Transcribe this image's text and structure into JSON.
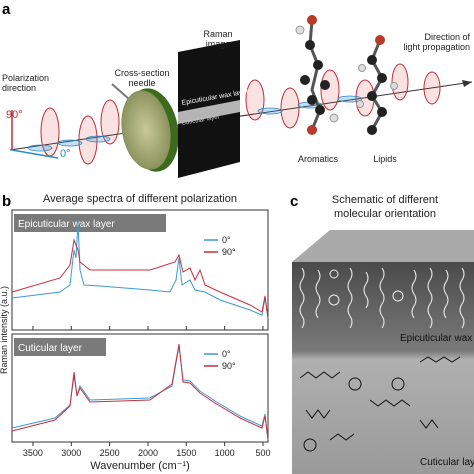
{
  "panel_a": {
    "letter": "a",
    "polarization": [
      "Polarization",
      "direction"
    ],
    "deg90": "90°",
    "deg0": "0°",
    "needle": [
      "Cross-section",
      "needle"
    ],
    "raman": [
      "Raman",
      "image"
    ],
    "image_labels": [
      "Epicuticular wax layer",
      "Cuticular layer"
    ],
    "aromatics": "Aromatics",
    "lipids": "Lipids",
    "direction": [
      "Direction of",
      "light propagation"
    ]
  },
  "panel_b": {
    "letter": "b",
    "title": "Average spectra of different polarization",
    "y_label": "Raman intensity (a.u.)",
    "plots": [
      {
        "label": "Epicuticular wax layer",
        "legend": [
          "0°",
          "90°"
        ]
      },
      {
        "label": "Cuticular layer",
        "legend": [
          "0°",
          "90°"
        ]
      }
    ],
    "x_axis": {
      "label": "Wavenumber (cm⁻¹)",
      "xlim": [
        3773,
        435
      ],
      "ticks": [
        3500,
        3000,
        2500,
        2000,
        1500,
        1000,
        500
      ]
    }
  },
  "panel_c": {
    "letter": "c",
    "title": [
      "Schematic of different",
      "molecular orientation"
    ],
    "layers": [
      "Epicuticular wax layer",
      "Cuticular layer"
    ]
  }
}
